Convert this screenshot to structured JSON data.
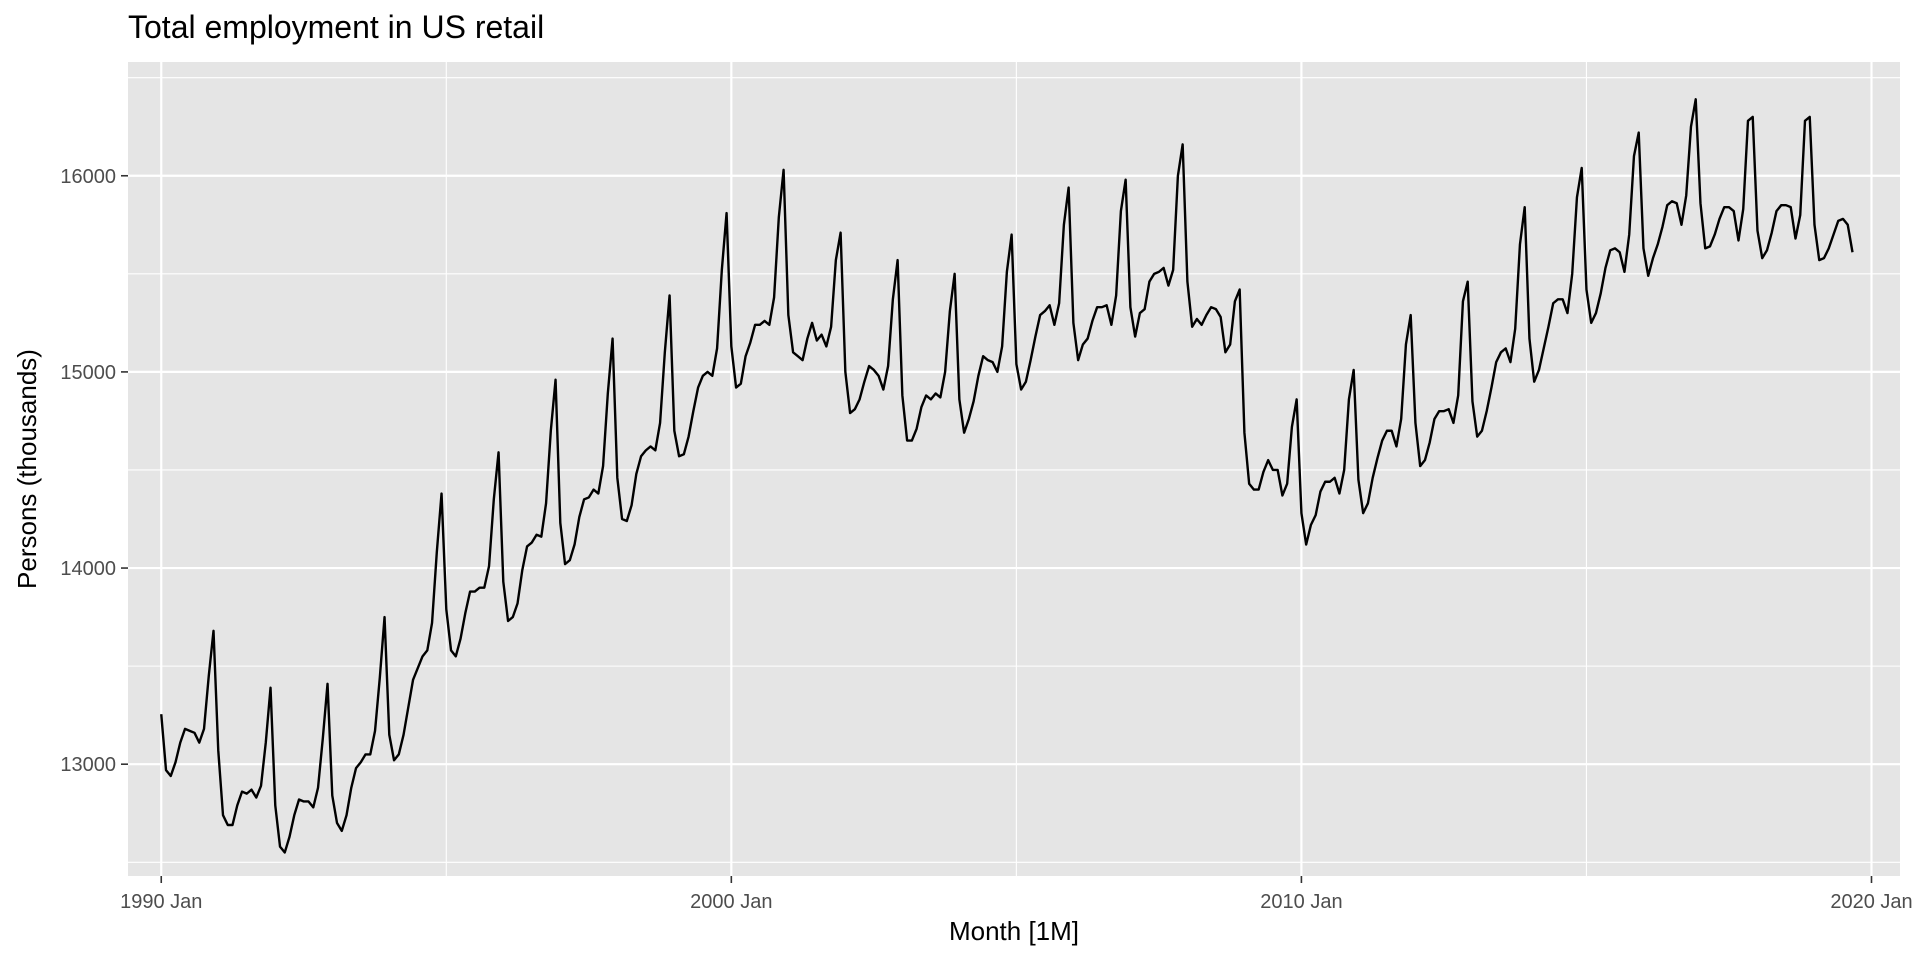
{
  "chart_data": {
    "type": "line",
    "title": "Total employment in US retail",
    "xlabel": "Month [1M]",
    "ylabel": "Persons (thousands)",
    "x_start": "1990 Jan",
    "frequency": "monthly",
    "xlim": [
      "1989 Jun",
      "2020 Jul"
    ],
    "ylim": [
      12430,
      16580
    ],
    "x_ticks": [
      {
        "label": "1990 Jan",
        "value": "1990-01"
      },
      {
        "label": "2000 Jan",
        "value": "2000-01"
      },
      {
        "label": "2010 Jan",
        "value": "2010-01"
      },
      {
        "label": "2020 Jan",
        "value": "2020-01"
      }
    ],
    "y_ticks": [
      13000,
      14000,
      15000,
      16000
    ],
    "grid": true,
    "line_color": "#000000",
    "panel_color": "#e5e5e5",
    "series": [
      {
        "values": [
          13255,
          12970,
          12940,
          13010,
          13110,
          13180,
          13170,
          13160,
          13110,
          13180,
          13450,
          13680,
          13070,
          12740,
          12690,
          12690,
          12790,
          12860,
          12850,
          12870,
          12830,
          12890,
          13110,
          13390,
          12790,
          12580,
          12550,
          12630,
          12740,
          12820,
          12810,
          12810,
          12780,
          12880,
          13130,
          13410,
          12840,
          12700,
          12660,
          12740,
          12880,
          12980,
          13010,
          13050,
          13050,
          13170,
          13440,
          13750,
          13150,
          13020,
          13050,
          13150,
          13290,
          13430,
          13490,
          13550,
          13580,
          13720,
          14080,
          14380,
          13790,
          13580,
          13550,
          13640,
          13770,
          13880,
          13880,
          13900,
          13900,
          14010,
          14350,
          14590,
          13930,
          13730,
          13750,
          13820,
          13990,
          14110,
          14130,
          14170,
          14160,
          14330,
          14700,
          14960,
          14230,
          14020,
          14040,
          14120,
          14260,
          14350,
          14360,
          14400,
          14380,
          14520,
          14890,
          15170,
          14460,
          14250,
          14240,
          14320,
          14480,
          14570,
          14600,
          14620,
          14600,
          14740,
          15100,
          15390,
          14700,
          14570,
          14580,
          14670,
          14800,
          14920,
          14980,
          15000,
          14980,
          15120,
          15520,
          15810,
          15130,
          14920,
          14940,
          15080,
          15150,
          15240,
          15240,
          15260,
          15240,
          15380,
          15790,
          16030,
          15290,
          15100,
          15080,
          15060,
          15170,
          15250,
          15160,
          15190,
          15130,
          15230,
          15570,
          15710,
          15000,
          14790,
          14810,
          14860,
          14950,
          15030,
          15010,
          14980,
          14910,
          15030,
          15370,
          15570,
          14880,
          14650,
          14650,
          14710,
          14820,
          14880,
          14860,
          14890,
          14870,
          15000,
          15310,
          15500,
          14860,
          14690,
          14760,
          14850,
          14980,
          15080,
          15060,
          15050,
          15000,
          15130,
          15510,
          15700,
          15040,
          14910,
          14950,
          15060,
          15180,
          15290,
          15310,
          15340,
          15240,
          15350,
          15750,
          15940,
          15250,
          15060,
          15140,
          15170,
          15260,
          15330,
          15330,
          15340,
          15240,
          15390,
          15820,
          15980,
          15330,
          15180,
          15300,
          15320,
          15460,
          15500,
          15510,
          15530,
          15440,
          15520,
          16000,
          16160,
          15460,
          15230,
          15270,
          15240,
          15290,
          15330,
          15320,
          15280,
          15100,
          15140,
          15360,
          15420,
          14690,
          14430,
          14400,
          14400,
          14490,
          14550,
          14500,
          14500,
          14370,
          14430,
          14720,
          14860,
          14280,
          14120,
          14220,
          14270,
          14390,
          14440,
          14440,
          14460,
          14380,
          14500,
          14860,
          15010,
          14450,
          14280,
          14330,
          14460,
          14560,
          14650,
          14700,
          14700,
          14620,
          14760,
          15140,
          15290,
          14740,
          14520,
          14550,
          14640,
          14760,
          14800,
          14800,
          14810,
          14740,
          14880,
          15360,
          15460,
          14850,
          14670,
          14700,
          14800,
          14920,
          15050,
          15100,
          15120,
          15050,
          15220,
          15650,
          15840,
          15170,
          14950,
          15010,
          15120,
          15230,
          15350,
          15370,
          15370,
          15300,
          15500,
          15890,
          16040,
          15420,
          15250,
          15300,
          15400,
          15530,
          15620,
          15630,
          15610,
          15510,
          15700,
          16100,
          16220,
          15630,
          15490,
          15580,
          15650,
          15740,
          15850,
          15870,
          15860,
          15750,
          15900,
          16250,
          16390,
          15860,
          15630,
          15640,
          15700,
          15780,
          15840,
          15840,
          15820,
          15670,
          15830,
          16280,
          16300,
          15720,
          15580,
          15620,
          15710,
          15820,
          15850,
          15850,
          15840,
          15680,
          15800,
          16280,
          16300,
          15750,
          15570,
          15580,
          15630,
          15700,
          15770,
          15780,
          15750,
          15610
        ]
      }
    ]
  }
}
